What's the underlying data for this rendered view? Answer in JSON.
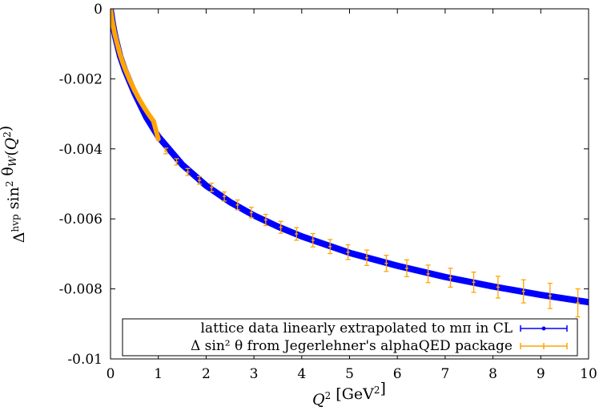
{
  "chart_data": {
    "type": "scatter",
    "title": "",
    "xlabel": "Q² [GeV²]",
    "ylabel": "Δhvp sin² θW(Q²)",
    "xlim": [
      0,
      10
    ],
    "ylim": [
      -0.01,
      0
    ],
    "x_ticks": [
      0,
      1,
      2,
      3,
      4,
      5,
      6,
      7,
      8,
      9,
      10
    ],
    "x_tick_labels": [
      "0",
      "1",
      "2",
      "3",
      "4",
      "5",
      "6",
      "7",
      "8",
      "9",
      "10"
    ],
    "y_ticks": [
      0,
      -0.002,
      -0.004,
      -0.006,
      -0.008,
      -0.01
    ],
    "y_tick_labels": [
      "0",
      "-0.002",
      "-0.004",
      "-0.006",
      "-0.008",
      "-0.01"
    ],
    "grid": false,
    "legend_position": "bottom-right",
    "series": [
      {
        "name": "lattice data linearly extrapolated to mπ in CL",
        "color": "#0000ff",
        "style": "dense points with error bars",
        "x": [
          0,
          0.05,
          0.1,
          0.2,
          0.3,
          0.5,
          0.75,
          1.0,
          1.5,
          2.0,
          2.5,
          3.0,
          3.5,
          4.0,
          5.0,
          6.0,
          7.0,
          8.0,
          9.0,
          10.0
        ],
        "y": [
          0,
          -0.00045,
          -0.0008,
          -0.00135,
          -0.00175,
          -0.0024,
          -0.0031,
          -0.00365,
          -0.00445,
          -0.00505,
          -0.00552,
          -0.0059,
          -0.00622,
          -0.0065,
          -0.00697,
          -0.00734,
          -0.00766,
          -0.00793,
          -0.00817,
          -0.00838
        ],
        "err": 0.0001
      },
      {
        "name": "Δ sin² θ from Jegerlehner's alphaQED package",
        "color": "#ffa500",
        "style": "points with error bars",
        "x": [
          0.0,
          0.02,
          0.05,
          0.08,
          0.1,
          0.15,
          0.2,
          0.25,
          0.3,
          0.4,
          0.5,
          0.6,
          0.7,
          0.8,
          0.9,
          1.0,
          1.157,
          1.382,
          1.616,
          1.86,
          2.115,
          2.38,
          2.656,
          2.945,
          3.247,
          3.562,
          3.89,
          4.234,
          4.593,
          4.968,
          5.36,
          5.769,
          6.197,
          6.643,
          7.11,
          7.597,
          8.106,
          8.638,
          9.194,
          9.775
        ],
        "y": [
          0,
          -0.0002,
          -0.00045,
          -0.00066,
          -0.00078,
          -0.00105,
          -0.0013,
          -0.00151,
          -0.0017,
          -0.00203,
          -0.00232,
          -0.00258,
          -0.00281,
          -0.00302,
          -0.00321,
          -0.00372,
          -0.00406,
          -0.00437,
          -0.00466,
          -0.0049,
          -0.0051,
          -0.00536,
          -0.0056,
          -0.00582,
          -0.00603,
          -0.00624,
          -0.00643,
          -0.00661,
          -0.00679,
          -0.00695,
          -0.00711,
          -0.00727,
          -0.00741,
          -0.00757,
          -0.00768,
          -0.00781,
          -0.00795,
          -0.00807,
          -0.0082,
          -0.0084
        ],
        "err": [
          0,
          1e-05,
          1e-05,
          1e-05,
          1e-05,
          2e-05,
          2e-05,
          2e-05,
          2e-05,
          2e-05,
          3e-05,
          3e-05,
          3e-05,
          3e-05,
          3e-05,
          6e-05,
          8e-05,
          9e-05,
          0.0001,
          0.00011,
          0.00012,
          0.00013,
          0.00014,
          0.00015,
          0.00016,
          0.00017,
          0.00018,
          0.00019,
          0.0002,
          0.00021,
          0.00022,
          0.00023,
          0.00024,
          0.00025,
          0.00027,
          0.00029,
          0.00031,
          0.00033,
          0.00036,
          0.0004
        ]
      }
    ]
  }
}
